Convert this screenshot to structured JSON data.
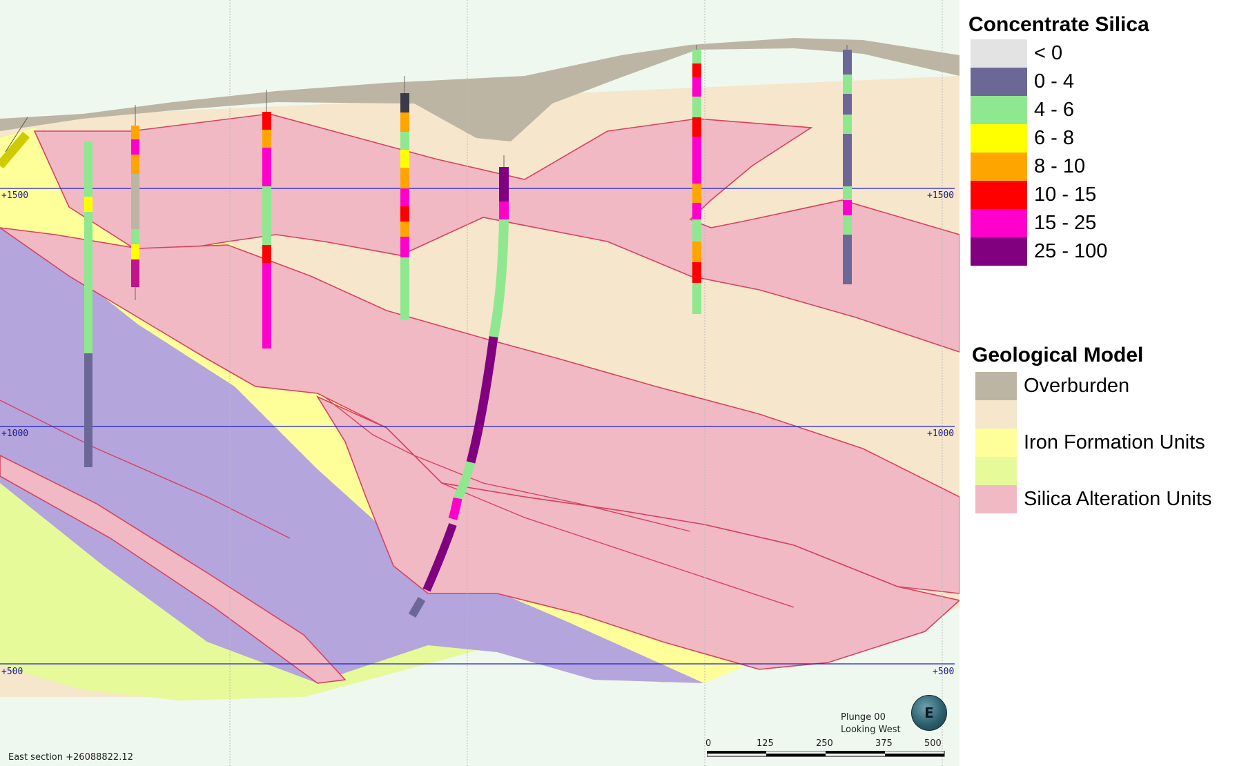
{
  "legend_silica": {
    "title": "Concentrate Silica",
    "items": [
      {
        "label": "< 0",
        "color": "#e3e3e3"
      },
      {
        "label": "0 - 4",
        "color": "#6b6898"
      },
      {
        "label": "4 - 6",
        "color": "#8fe88f"
      },
      {
        "label": "6 - 8",
        "color": "#ffff00"
      },
      {
        "label": "8 - 10",
        "color": "#ffa500"
      },
      {
        "label": "10 - 15",
        "color": "#ff0000"
      },
      {
        "label": "15 - 25",
        "color": "#ff00cc"
      },
      {
        "label": "25 - 100",
        "color": "#800080"
      }
    ]
  },
  "legend_geology": {
    "title": "Geological Model",
    "items": [
      {
        "label": "Overburden",
        "color": "#bdb5a4"
      },
      {
        "label": "",
        "color": "#f5e6cc"
      },
      {
        "label": "Iron Formation Units",
        "color": "#ffff99"
      },
      {
        "label": "",
        "color": "#e6fa99"
      },
      {
        "label": "Silica Alteration Units",
        "color": "#f0b9c3"
      }
    ]
  },
  "elevation_labels": [
    "+1500",
    "+1000",
    "+500"
  ],
  "section_label": "East section +26088822.12",
  "view_info": [
    "Plunge 00",
    "Looking West"
  ],
  "compass_letter": "E",
  "scale_ticks": [
    "0",
    "125",
    "250",
    "375",
    "500"
  ],
  "colors": {
    "overburden": "#bdb5a4",
    "beige_unit": "#f5e6cc",
    "iron_formation": "#ffff99",
    "green_unit": "#e6fa99",
    "silica_alteration": "#f0b9c3",
    "purple_unit": "#b4a5dc",
    "basement": "#eef8ee",
    "contact_line": "#d94060",
    "elevation_line": "#1f1fcc"
  }
}
